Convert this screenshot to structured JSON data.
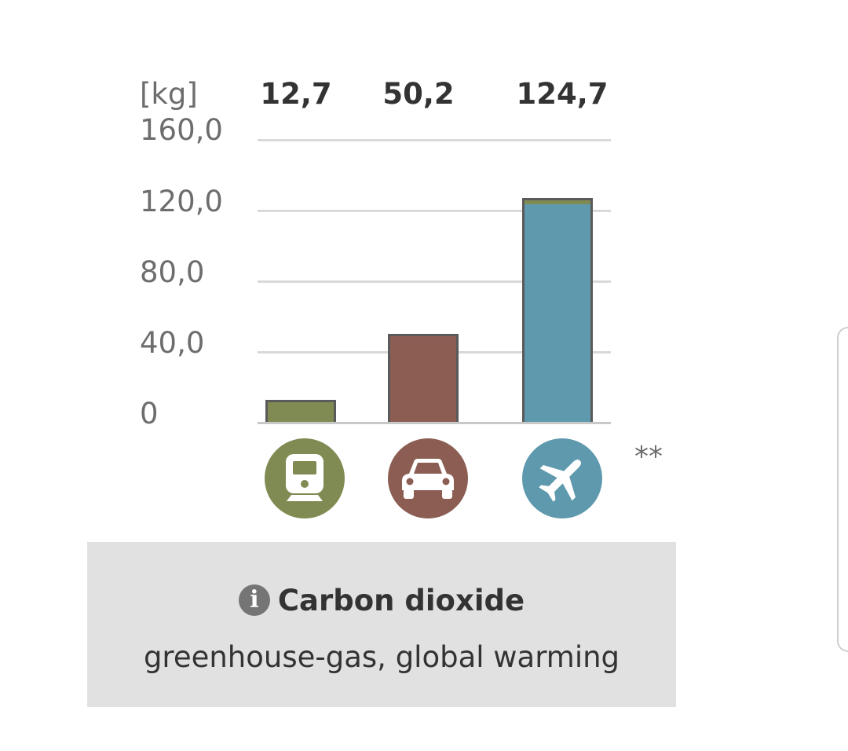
{
  "chart_data": {
    "type": "bar",
    "unit_label": "[kg]",
    "categories": [
      "train",
      "car",
      "plane"
    ],
    "values": [
      12.7,
      50.2,
      124.7
    ],
    "value_labels": [
      "12,7",
      "50,2",
      "124,7"
    ],
    "stack_cap": [
      0,
      0,
      2.5
    ],
    "yticks": [
      "160,0",
      "120,0",
      "80,0",
      "40,0",
      "0"
    ],
    "ytick_values": [
      160,
      120,
      80,
      40,
      0
    ],
    "ylim": [
      0,
      160
    ],
    "grid": true,
    "footnote": "**"
  },
  "colors": {
    "train": "#7f8b52",
    "car": "#8c5e53",
    "plane": "#5e99ad",
    "plane_cap": "#7f8b52",
    "gridline": "#d9d9d9",
    "info_box": "#e1e1e1"
  },
  "icons": [
    "train-icon",
    "car-icon",
    "airplane-icon",
    "info-icon"
  ],
  "info_box": {
    "title": "Carbon dioxide",
    "subtitle": "greenhouse-gas, global warming"
  }
}
